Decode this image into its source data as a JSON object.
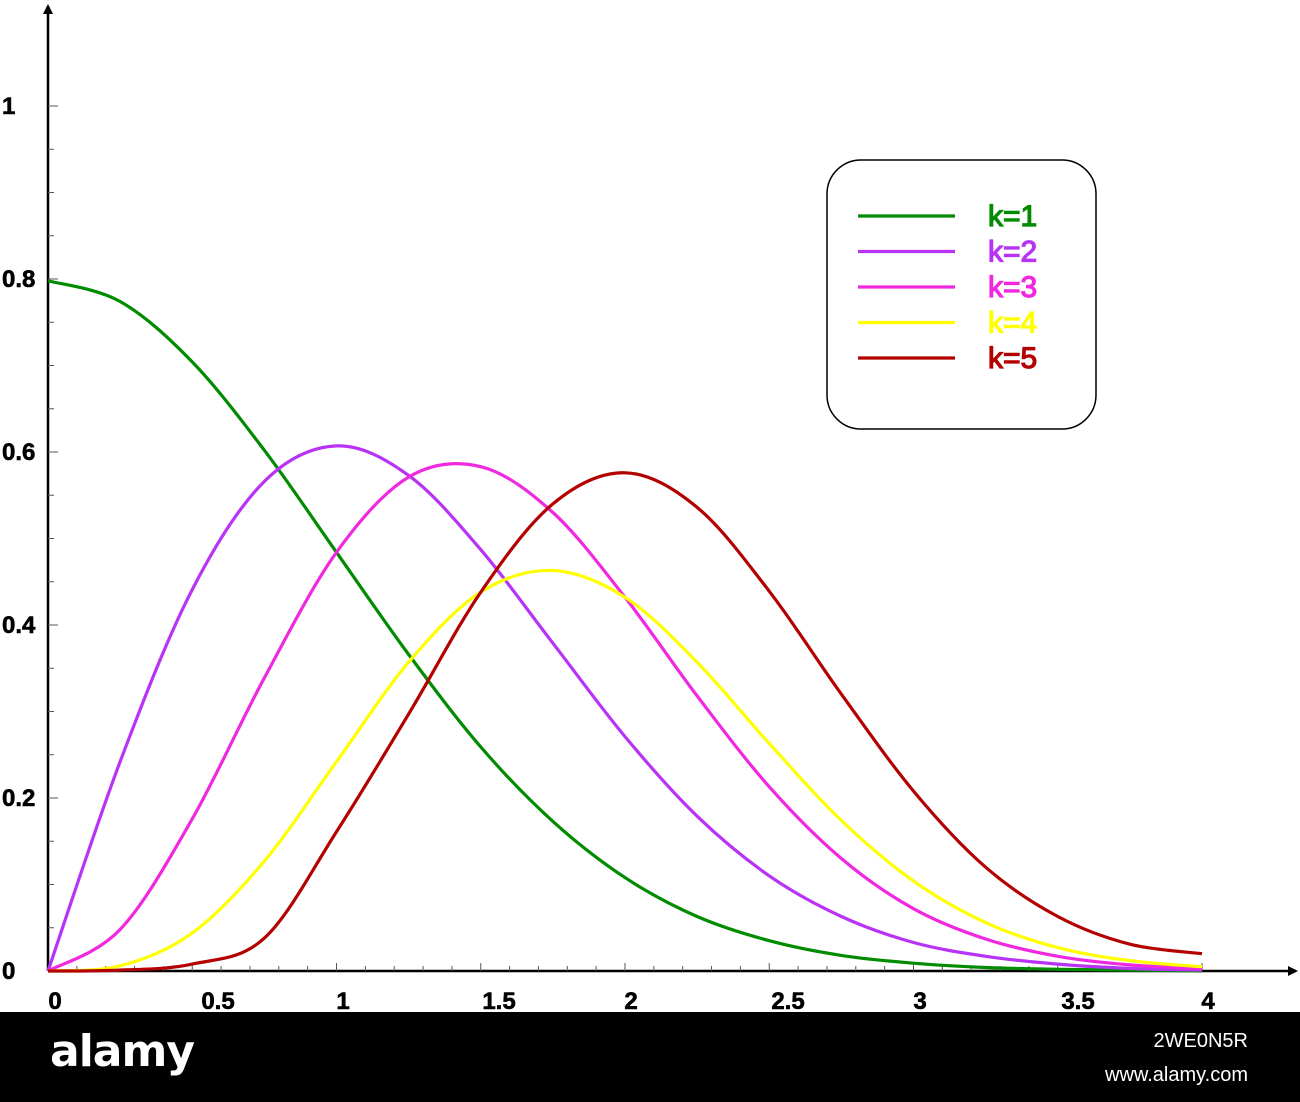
{
  "chart_data": {
    "type": "line",
    "x_ticks": [
      "0",
      "0.5",
      "1",
      "1.5",
      "2",
      "2.5",
      "3",
      "3.5",
      "4"
    ],
    "y_ticks": [
      "0",
      "0.2",
      "0.4",
      "0.6",
      "0.8",
      "1"
    ],
    "xlim": [
      0,
      4.3
    ],
    "ylim": [
      0,
      1.1
    ],
    "grid": false,
    "legend_position": "top-right",
    "series": [
      {
        "name": "k=1",
        "color": "#008b00",
        "x": [
          0,
          0.25,
          0.5,
          0.75,
          1,
          1.25,
          1.5,
          1.75,
          2,
          2.25,
          2.5,
          2.75,
          3,
          3.25,
          3.5,
          3.75,
          4
        ],
        "y": [
          0.798,
          0.774,
          0.704,
          0.602,
          0.484,
          0.366,
          0.259,
          0.173,
          0.108,
          0.063,
          0.035,
          0.018,
          0.009,
          0.004,
          0.002,
          0.001,
          0.0
        ]
      },
      {
        "name": "k=2",
        "color": "#b833f5",
        "x": [
          0,
          0.25,
          0.5,
          0.75,
          1,
          1.25,
          1.5,
          1.75,
          2,
          2.25,
          2.5,
          2.75,
          3,
          3.25,
          3.5,
          3.75,
          4
        ],
        "y": [
          0.0,
          0.242,
          0.441,
          0.566,
          0.607,
          0.573,
          0.487,
          0.379,
          0.271,
          0.179,
          0.11,
          0.063,
          0.033,
          0.017,
          0.008,
          0.003,
          0.001
        ]
      },
      {
        "name": "k=3",
        "color": "#f028e0",
        "x": [
          0,
          0.25,
          0.5,
          0.75,
          1,
          1.25,
          1.5,
          1.75,
          2,
          2.25,
          2.5,
          2.75,
          3,
          3.25,
          3.5,
          3.75,
          4
        ],
        "y": [
          0.0,
          0.048,
          0.176,
          0.339,
          0.484,
          0.571,
          0.583,
          0.53,
          0.432,
          0.318,
          0.213,
          0.13,
          0.072,
          0.037,
          0.017,
          0.007,
          0.003
        ]
      },
      {
        "name": "k=4",
        "color": "#ffff00",
        "x": [
          0,
          0.25,
          0.5,
          0.75,
          1,
          1.25,
          1.5,
          1.75,
          2,
          2.25,
          2.5,
          2.75,
          3,
          3.25,
          3.5,
          3.75,
          4
        ],
        "y": [
          0.0,
          0.006,
          0.044,
          0.127,
          0.242,
          0.357,
          0.438,
          0.463,
          0.432,
          0.357,
          0.263,
          0.174,
          0.104,
          0.056,
          0.027,
          0.012,
          0.005
        ]
      },
      {
        "name": "k=5",
        "color": "#b30000",
        "x": [
          0,
          0.25,
          0.5,
          0.75,
          1,
          1.25,
          1.5,
          1.75,
          2,
          2.25,
          2.5,
          2.75,
          3,
          3.25,
          3.5,
          3.75,
          4
        ],
        "y": [
          0.0,
          0.001,
          0.008,
          0.038,
          0.161,
          0.297,
          0.438,
          0.54,
          0.576,
          0.536,
          0.439,
          0.32,
          0.208,
          0.12,
          0.063,
          0.031,
          0.02
        ]
      }
    ]
  },
  "watermark": {
    "brand": "alamy",
    "image_id": "2WE0N5R",
    "url": "www.alamy.com"
  }
}
